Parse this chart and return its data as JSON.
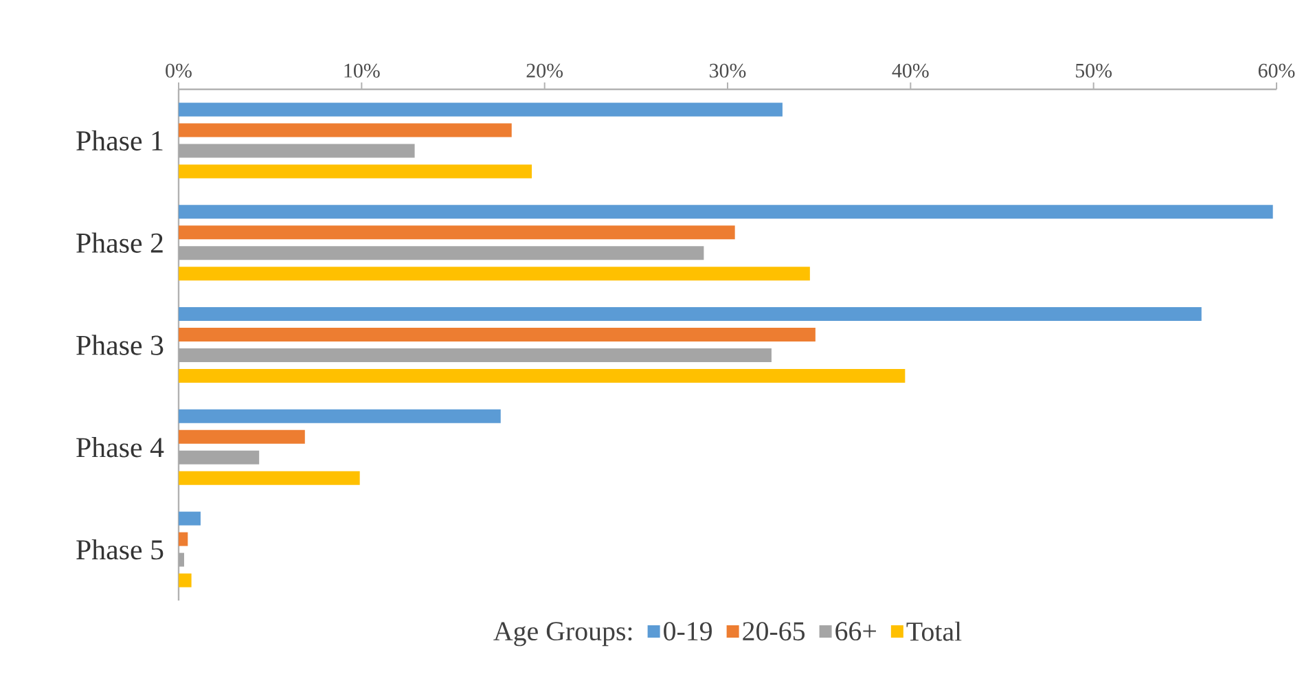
{
  "chart_data": {
    "type": "bar",
    "orientation": "horizontal",
    "categories": [
      "Phase 1",
      "Phase 2",
      "Phase 3",
      "Phase 4",
      "Phase 5"
    ],
    "series": [
      {
        "name": "0-19",
        "color": "#5b9bd5",
        "values": [
          33.0,
          59.8,
          55.9,
          17.6,
          1.2
        ]
      },
      {
        "name": "20-65",
        "color": "#ed7d31",
        "values": [
          18.2,
          30.4,
          34.8,
          6.9,
          0.5
        ]
      },
      {
        "name": "66+",
        "color": "#a5a5a5",
        "values": [
          12.9,
          28.7,
          32.4,
          4.4,
          0.3
        ]
      },
      {
        "name": "Total",
        "color": "#ffc000",
        "values": [
          19.3,
          34.5,
          39.7,
          9.9,
          0.7
        ]
      }
    ],
    "xlim": [
      0,
      60
    ],
    "xticks": [
      {
        "value": 0,
        "label": "0%"
      },
      {
        "value": 10,
        "label": "10%"
      },
      {
        "value": 20,
        "label": "20%"
      },
      {
        "value": 30,
        "label": "30%"
      },
      {
        "value": 40,
        "label": "40%"
      },
      {
        "value": 50,
        "label": "50%"
      },
      {
        "value": 60,
        "label": "60%"
      }
    ],
    "legend": "bottom",
    "legend_title": "Age Groups:"
  }
}
